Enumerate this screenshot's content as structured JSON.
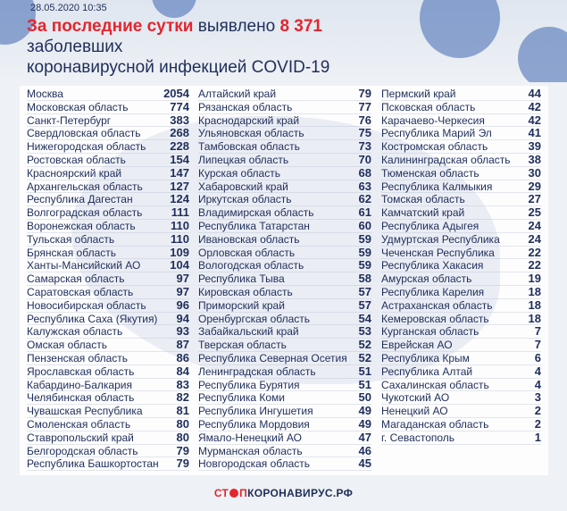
{
  "header": {
    "date": "28.05.2020 10:35",
    "title": [
      "За последние сутки",
      "выявлено",
      "8 371",
      "заболевших",
      "коронавирусной инфекцией COVID-19"
    ]
  },
  "table": {
    "columns": [
      {
        "rows": [
          {
            "name": "Москва",
            "value": 2054
          },
          {
            "name": "Московская область",
            "value": 774
          },
          {
            "name": "Санкт-Петербург",
            "value": 383
          },
          {
            "name": "Свердловская область",
            "value": 268
          },
          {
            "name": "Нижегородская область",
            "value": 228
          },
          {
            "name": "Ростовская область",
            "value": 154
          },
          {
            "name": "Красноярский край",
            "value": 147
          },
          {
            "name": "Архангельская область",
            "value": 127
          },
          {
            "name": "Республика Дагестан",
            "value": 124
          },
          {
            "name": "Волгоградская область",
            "value": 111
          },
          {
            "name": "Воронежская область",
            "value": 110
          },
          {
            "name": "Тульская область",
            "value": 110
          },
          {
            "name": "Брянская область",
            "value": 109
          },
          {
            "name": "Ханты-Мансийский АО",
            "value": 104
          },
          {
            "name": "Самарская область",
            "value": 97
          },
          {
            "name": "Саратовская область",
            "value": 97
          },
          {
            "name": "Новосибирская область",
            "value": 96
          },
          {
            "name": "Республика Саха (Якутия)",
            "value": 94
          },
          {
            "name": "Калужская область",
            "value": 93
          },
          {
            "name": "Омская область",
            "value": 87
          },
          {
            "name": "Пензенская область",
            "value": 86
          },
          {
            "name": "Ярославская область",
            "value": 84
          },
          {
            "name": "Кабардино-Балкария",
            "value": 83
          },
          {
            "name": "Челябинская область",
            "value": 82
          },
          {
            "name": "Чувашская Республика",
            "value": 81
          },
          {
            "name": "Смоленская область",
            "value": 80
          },
          {
            "name": "Ставропольский край",
            "value": 80
          },
          {
            "name": "Белгородская область",
            "value": 79
          },
          {
            "name": "Республика Башкортостан",
            "value": 79
          }
        ]
      },
      {
        "rows": [
          {
            "name": "Алтайский край",
            "value": 79
          },
          {
            "name": "Рязанская область",
            "value": 77
          },
          {
            "name": "Краснодарский край",
            "value": 76
          },
          {
            "name": "Ульяновская область",
            "value": 75
          },
          {
            "name": "Тамбовская область",
            "value": 73
          },
          {
            "name": "Липецкая область",
            "value": 70
          },
          {
            "name": "Курская область",
            "value": 68
          },
          {
            "name": "Хабаровский край",
            "value": 63
          },
          {
            "name": "Иркутская область",
            "value": 62
          },
          {
            "name": "Владимирская область",
            "value": 61
          },
          {
            "name": "Республика Татарстан",
            "value": 60
          },
          {
            "name": "Ивановская область",
            "value": 59
          },
          {
            "name": "Орловская область",
            "value": 59
          },
          {
            "name": "Вологодская область",
            "value": 59
          },
          {
            "name": "Республика Тыва",
            "value": 58
          },
          {
            "name": "Кировская область",
            "value": 57
          },
          {
            "name": "Приморский край",
            "value": 57
          },
          {
            "name": "Оренбургская область",
            "value": 54
          },
          {
            "name": "Забайкальский край",
            "value": 53
          },
          {
            "name": "Тверская область",
            "value": 52
          },
          {
            "name": "Республика Северная Осетия",
            "value": 52
          },
          {
            "name": "Ленинградская область",
            "value": 51
          },
          {
            "name": "Республика Бурятия",
            "value": 51
          },
          {
            "name": "Республика Коми",
            "value": 50
          },
          {
            "name": "Республика Ингушетия",
            "value": 49
          },
          {
            "name": "Республика Мордовия",
            "value": 49
          },
          {
            "name": "Ямало-Ненецкий АО",
            "value": 47
          },
          {
            "name": "Мурманская область",
            "value": 46
          },
          {
            "name": "Новгородская область",
            "value": 45
          }
        ]
      },
      {
        "rows": [
          {
            "name": "Пермский край",
            "value": 44
          },
          {
            "name": "Псковская область",
            "value": 42
          },
          {
            "name": "Карачаево-Черкесия",
            "value": 42
          },
          {
            "name": "Республика Марий Эл",
            "value": 41
          },
          {
            "name": "Костромская область",
            "value": 39
          },
          {
            "name": "Калининградская область",
            "value": 38
          },
          {
            "name": "Тюменская область",
            "value": 30
          },
          {
            "name": "Республика Калмыкия",
            "value": 29
          },
          {
            "name": "Томская область",
            "value": 27
          },
          {
            "name": "Камчатский край",
            "value": 25
          },
          {
            "name": "Республика Адыгея",
            "value": 24
          },
          {
            "name": "Удмуртская Республика",
            "value": 24
          },
          {
            "name": "Чеченская Республика",
            "value": 22
          },
          {
            "name": "Республика Хакасия",
            "value": 22
          },
          {
            "name": "Амурская область",
            "value": 19
          },
          {
            "name": "Республика Карелия",
            "value": 18
          },
          {
            "name": "Астраханская область",
            "value": 18
          },
          {
            "name": "Кемеровская область",
            "value": 18
          },
          {
            "name": "Курганская область",
            "value": 7
          },
          {
            "name": "Еврейская АО",
            "value": 7
          },
          {
            "name": "Республика Крым",
            "value": 6
          },
          {
            "name": "Республика Алтай",
            "value": 4
          },
          {
            "name": "Сахалинская область",
            "value": 4
          },
          {
            "name": "Чукотский АО",
            "value": 3
          },
          {
            "name": "Ненецкий АО",
            "value": 2
          },
          {
            "name": "Магаданская область",
            "value": 2
          },
          {
            "name": "г. Севастополь",
            "value": 1
          }
        ]
      }
    ]
  },
  "footer": {
    "logo_left": "СТ",
    "logo_mid": "П",
    "logo_right": "КОРОНАВИРУС.РФ"
  }
}
